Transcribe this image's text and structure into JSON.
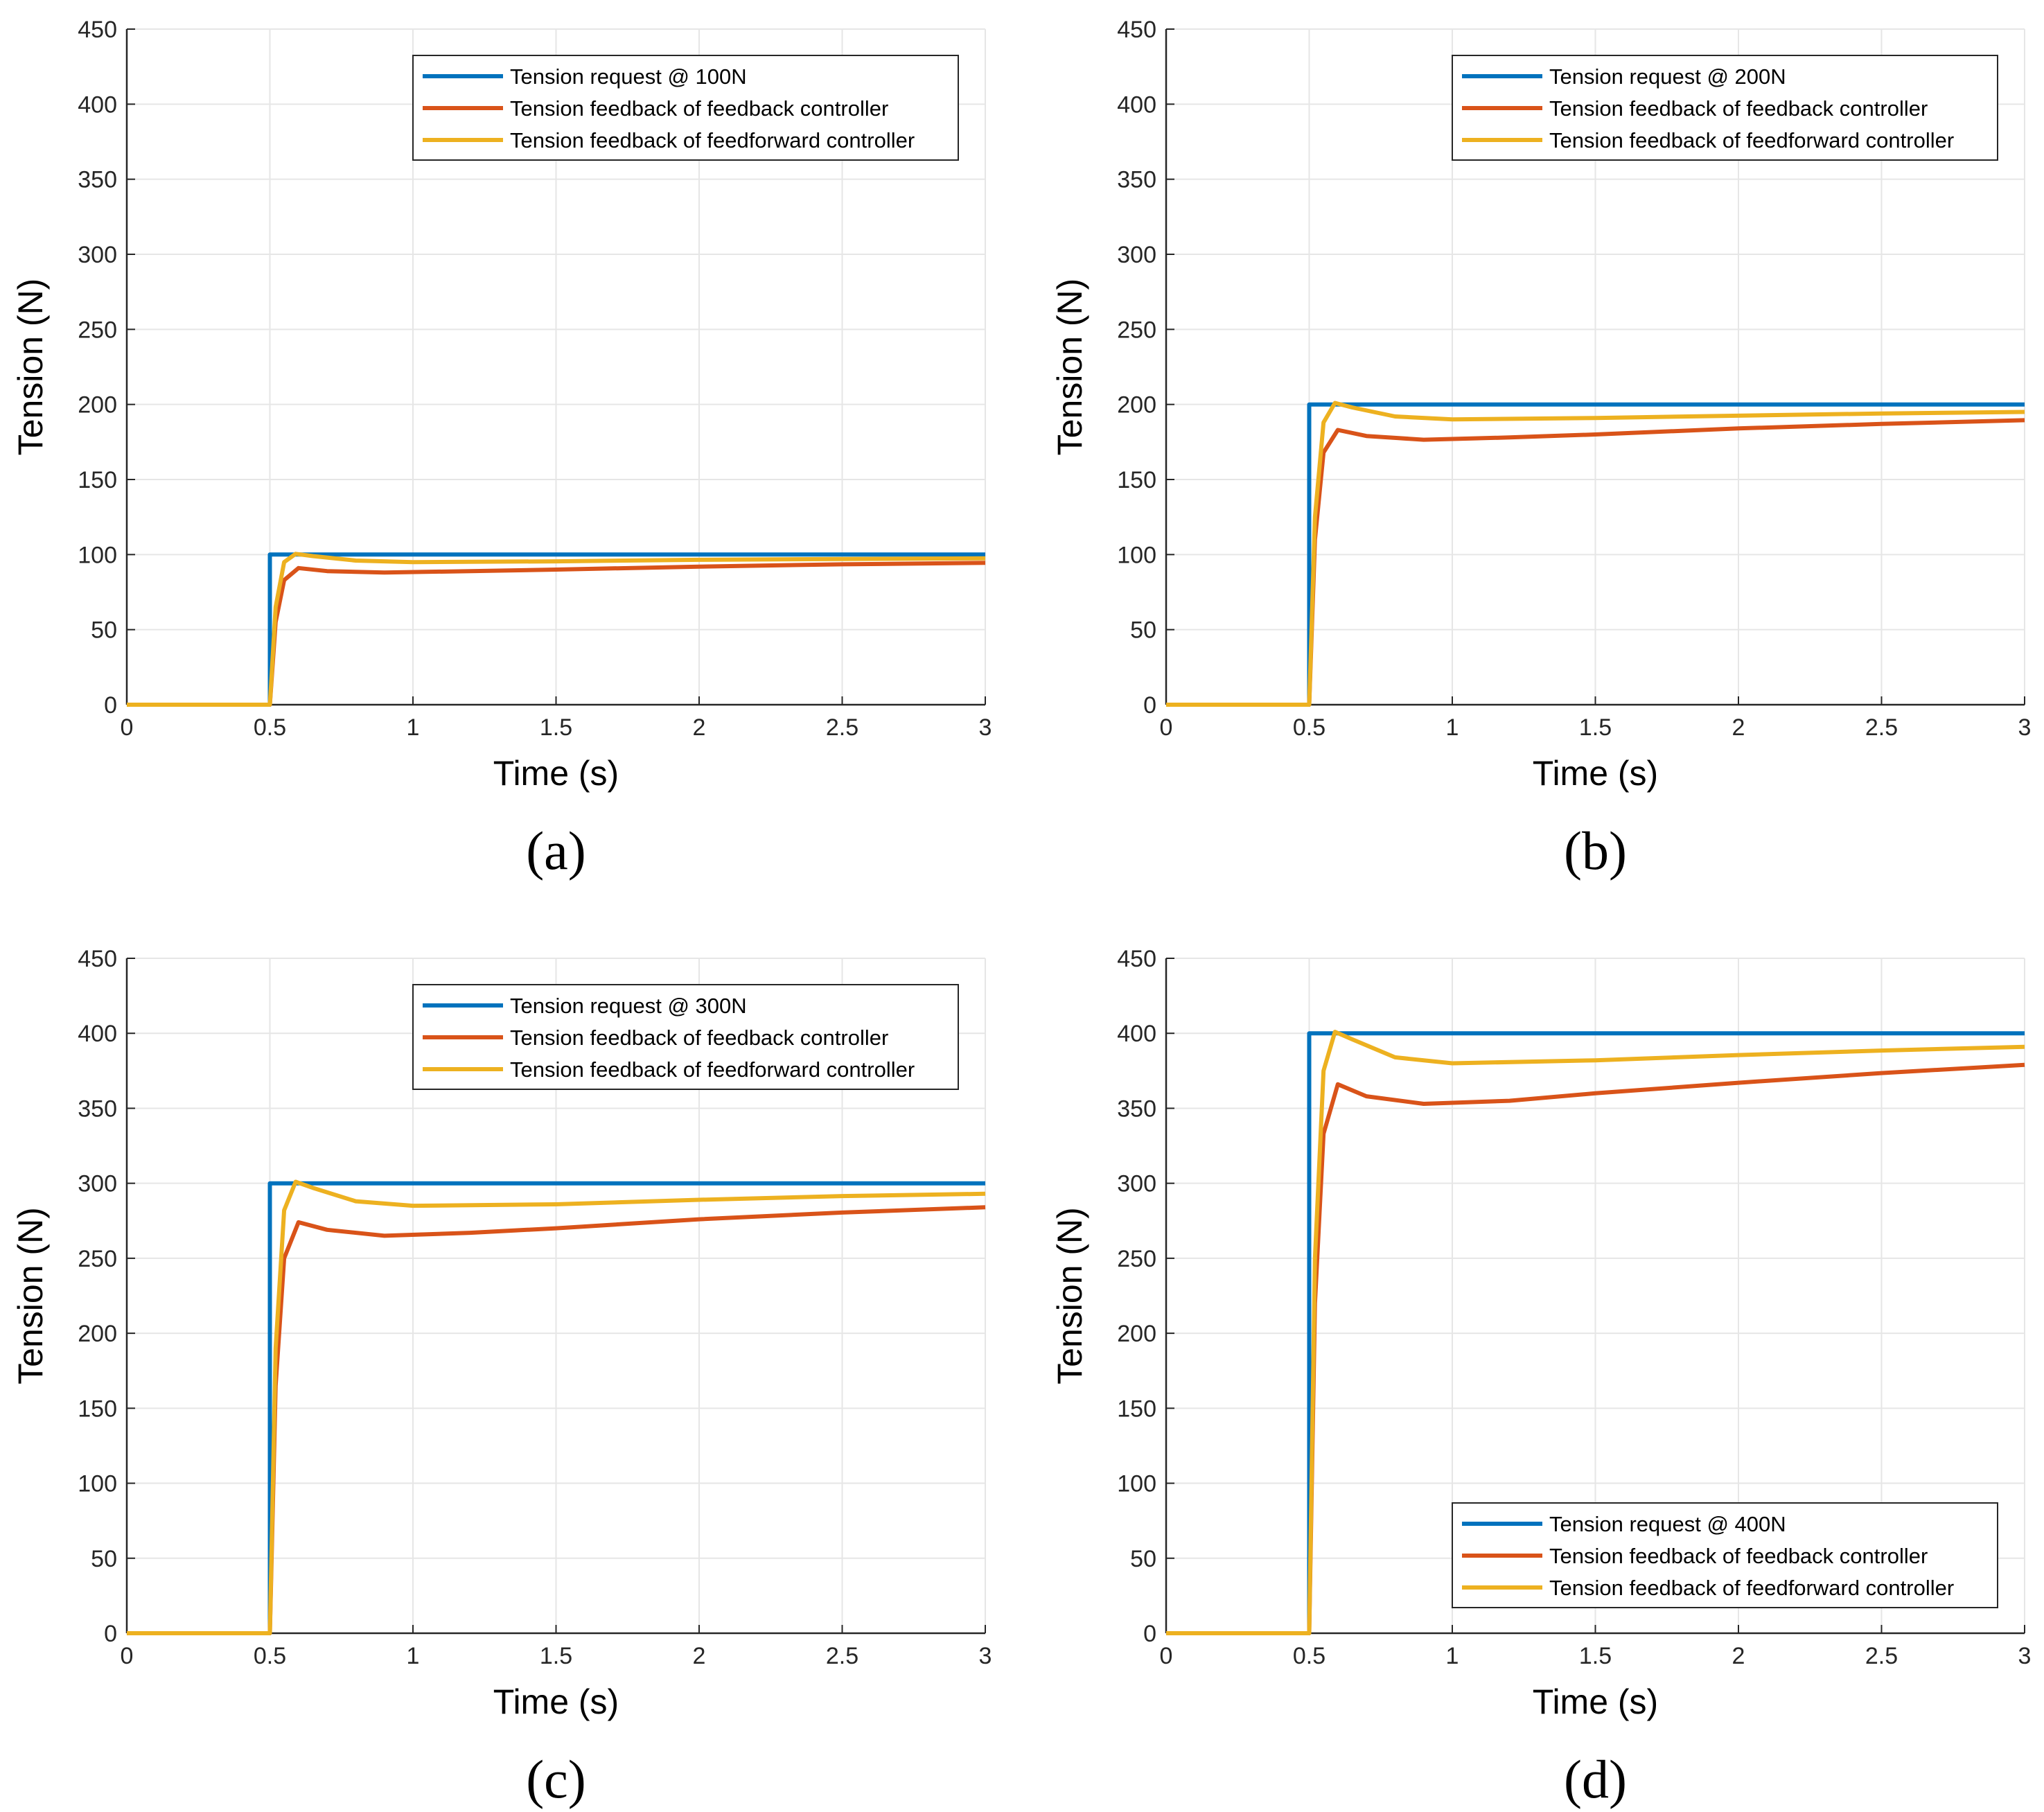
{
  "colors": {
    "request": "#0072BD",
    "feedback": "#D95319",
    "feedforward": "#EDB120",
    "grid": "#E6E6E6",
    "axis": "#262626"
  },
  "chart_data": [
    {
      "type": "line",
      "caption": "(a)",
      "xlabel": "Time (s)",
      "ylabel": "Tension (N)",
      "xlim": [
        0,
        3
      ],
      "ylim": [
        0,
        450
      ],
      "xticks": [
        0,
        0.5,
        1,
        1.5,
        2,
        2.5,
        3
      ],
      "xtick_labels": [
        "0",
        "0.5",
        "1",
        "1.5",
        "2",
        "2.5",
        "3"
      ],
      "yticks": [
        0,
        50,
        100,
        150,
        200,
        250,
        300,
        350,
        400,
        450
      ],
      "ytick_labels": [
        "0",
        "50",
        "100",
        "150",
        "200",
        "250",
        "300",
        "350",
        "400",
        "450"
      ],
      "grid": true,
      "legend_position": "top-right",
      "series": [
        {
          "name": "Tension request @ 100N",
          "key": "request",
          "x": [
            0,
            0.5,
            0.5,
            3
          ],
          "y": [
            0,
            0,
            100,
            100
          ]
        },
        {
          "name": "Tension feedback of feedback controller",
          "key": "feedback",
          "x": [
            0,
            0.5,
            0.52,
            0.55,
            0.6,
            0.7,
            0.9,
            1.2,
            1.5,
            2,
            2.5,
            3
          ],
          "y": [
            0,
            0,
            55,
            83,
            91,
            89,
            88,
            89,
            90,
            92,
            93.5,
            94.5
          ]
        },
        {
          "name": "Tension feedback of feedforward controller",
          "key": "feedforward",
          "x": [
            0,
            0.5,
            0.52,
            0.55,
            0.59,
            0.65,
            0.8,
            1,
            1.5,
            2,
            2.5,
            3
          ],
          "y": [
            0,
            0,
            65,
            95,
            100.5,
            99,
            96,
            95,
            95.5,
            96.5,
            97,
            97.5
          ]
        }
      ]
    },
    {
      "type": "line",
      "caption": "(b)",
      "xlabel": "Time (s)",
      "ylabel": "Tension (N)",
      "xlim": [
        0,
        3
      ],
      "ylim": [
        0,
        450
      ],
      "xticks": [
        0,
        0.5,
        1,
        1.5,
        2,
        2.5,
        3
      ],
      "xtick_labels": [
        "0",
        "0.5",
        "1",
        "1.5",
        "2",
        "2.5",
        "3"
      ],
      "yticks": [
        0,
        50,
        100,
        150,
        200,
        250,
        300,
        350,
        400,
        450
      ],
      "ytick_labels": [
        "0",
        "50",
        "100",
        "150",
        "200",
        "250",
        "300",
        "350",
        "400",
        "450"
      ],
      "grid": true,
      "legend_position": "top-right",
      "series": [
        {
          "name": "Tension request @ 200N",
          "key": "request",
          "x": [
            0,
            0.5,
            0.5,
            3
          ],
          "y": [
            0,
            0,
            200,
            200
          ]
        },
        {
          "name": "Tension feedback of feedback controller",
          "key": "feedback",
          "x": [
            0,
            0.5,
            0.52,
            0.55,
            0.6,
            0.7,
            0.9,
            1.2,
            1.5,
            2,
            2.5,
            3
          ],
          "y": [
            0,
            0,
            110,
            168,
            183,
            179,
            176.5,
            178,
            180,
            184,
            187,
            189.5
          ]
        },
        {
          "name": "Tension feedback of feedforward controller",
          "key": "feedforward",
          "x": [
            0,
            0.5,
            0.52,
            0.55,
            0.59,
            0.65,
            0.8,
            1,
            1.5,
            2,
            2.5,
            3
          ],
          "y": [
            0,
            0,
            125,
            188,
            201,
            198,
            192,
            190,
            191,
            192.5,
            194,
            195
          ]
        }
      ]
    },
    {
      "type": "line",
      "caption": "(c)",
      "xlabel": "Time (s)",
      "ylabel": "Tension (N)",
      "xlim": [
        0,
        3
      ],
      "ylim": [
        0,
        450
      ],
      "xticks": [
        0,
        0.5,
        1,
        1.5,
        2,
        2.5,
        3
      ],
      "xtick_labels": [
        "0",
        "0.5",
        "1",
        "1.5",
        "2",
        "2.5",
        "3"
      ],
      "yticks": [
        0,
        50,
        100,
        150,
        200,
        250,
        300,
        350,
        400,
        450
      ],
      "ytick_labels": [
        "0",
        "50",
        "100",
        "150",
        "200",
        "250",
        "300",
        "350",
        "400",
        "450"
      ],
      "grid": true,
      "legend_position": "top-right",
      "series": [
        {
          "name": "Tension request @ 300N",
          "key": "request",
          "x": [
            0,
            0.5,
            0.5,
            3
          ],
          "y": [
            0,
            0,
            300,
            300
          ]
        },
        {
          "name": "Tension feedback of feedback controller",
          "key": "feedback",
          "x": [
            0,
            0.5,
            0.52,
            0.55,
            0.6,
            0.7,
            0.9,
            1.2,
            1.5,
            2,
            2.5,
            3
          ],
          "y": [
            0,
            0,
            165,
            250,
            274,
            269,
            265,
            267,
            270,
            276,
            280.5,
            284
          ]
        },
        {
          "name": "Tension feedback of feedforward controller",
          "key": "feedforward",
          "x": [
            0,
            0.5,
            0.52,
            0.55,
            0.59,
            0.65,
            0.8,
            1,
            1.5,
            2,
            2.5,
            3
          ],
          "y": [
            0,
            0,
            190,
            282,
            301,
            297,
            288,
            285,
            286,
            289,
            291.5,
            293
          ]
        }
      ]
    },
    {
      "type": "line",
      "caption": "(d)",
      "xlabel": "Time (s)",
      "ylabel": "Tension (N)",
      "xlim": [
        0,
        3
      ],
      "ylim": [
        0,
        450
      ],
      "xticks": [
        0,
        0.5,
        1,
        1.5,
        2,
        2.5,
        3
      ],
      "xtick_labels": [
        "0",
        "0.5",
        "1",
        "1.5",
        "2",
        "2.5",
        "3"
      ],
      "yticks": [
        0,
        50,
        100,
        150,
        200,
        250,
        300,
        350,
        400,
        450
      ],
      "ytick_labels": [
        "0",
        "50",
        "100",
        "150",
        "200",
        "250",
        "300",
        "350",
        "400",
        "450"
      ],
      "grid": true,
      "legend_position": "bottom-right",
      "series": [
        {
          "name": "Tension request @ 400N",
          "key": "request",
          "x": [
            0,
            0.5,
            0.5,
            3
          ],
          "y": [
            0,
            0,
            400,
            400
          ]
        },
        {
          "name": "Tension feedback of feedback controller",
          "key": "feedback",
          "x": [
            0,
            0.5,
            0.52,
            0.55,
            0.6,
            0.7,
            0.9,
            1.2,
            1.5,
            2,
            2.5,
            3
          ],
          "y": [
            0,
            0,
            220,
            333,
            366,
            358,
            353,
            355,
            360,
            367,
            373.5,
            379
          ]
        },
        {
          "name": "Tension feedback of feedforward controller",
          "key": "feedforward",
          "x": [
            0,
            0.5,
            0.52,
            0.55,
            0.59,
            0.65,
            0.8,
            1,
            1.5,
            2,
            2.5,
            3
          ],
          "y": [
            0,
            0,
            250,
            375,
            401,
            396,
            384,
            380,
            382,
            385.5,
            388.5,
            391
          ]
        }
      ]
    }
  ]
}
